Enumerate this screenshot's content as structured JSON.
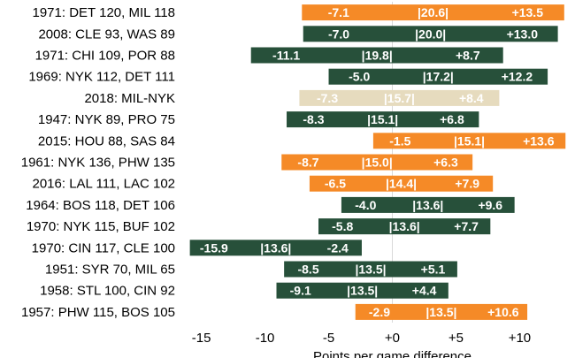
{
  "chart_data": {
    "type": "bar",
    "orientation": "horizontal-range",
    "xlabel": "Points per game difference",
    "xlim": [
      -16.5,
      14
    ],
    "xticks": [
      -15,
      -10,
      -5,
      0,
      5,
      10
    ],
    "xtick_labels": [
      "-15",
      "-10",
      "-5",
      "+0",
      "+5",
      "+10"
    ],
    "colors": {
      "orange": "#f58a27",
      "green": "#27503a",
      "tan": "#e6dbbe"
    },
    "rows": [
      {
        "label": "1971: DET 120, MIL 118",
        "start": -7.1,
        "end": 13.5,
        "range": "|20.6|",
        "start_label": "-7.1",
        "end_label": "+13.5",
        "color": "orange"
      },
      {
        "label": "2008: CLE 93, WAS 89",
        "start": -7.0,
        "end": 13.0,
        "range": "|20.0|",
        "start_label": "-7.0",
        "end_label": "+13.0",
        "color": "green"
      },
      {
        "label": "1971: CHI 109, POR 88",
        "start": -11.1,
        "end": 8.7,
        "range": "|19.8|",
        "start_label": "-11.1",
        "end_label": "+8.7",
        "color": "green"
      },
      {
        "label": "1969: NYK 112, DET 111",
        "start": -5.0,
        "end": 12.2,
        "range": "|17.2|",
        "start_label": "-5.0",
        "end_label": "+12.2",
        "color": "green"
      },
      {
        "label": "2018: MIL-NYK",
        "start": -7.3,
        "end": 8.4,
        "range": "|15.7|",
        "start_label": "-7.3",
        "end_label": "+8.4",
        "color": "tan"
      },
      {
        "label": "1947: NYK 89, PRO 75",
        "start": -8.3,
        "end": 6.8,
        "range": "|15.1|",
        "start_label": "-8.3",
        "end_label": "+6.8",
        "color": "green"
      },
      {
        "label": "2015: HOU 88, SAS 84",
        "start": -1.5,
        "end": 13.6,
        "range": "|15.1|",
        "start_label": "-1.5",
        "end_label": "+13.6",
        "color": "orange"
      },
      {
        "label": "1961: NYK 136, PHW 135",
        "start": -8.7,
        "end": 6.3,
        "range": "|15.0|",
        "start_label": "-8.7",
        "end_label": "+6.3",
        "color": "orange"
      },
      {
        "label": "2016: LAL 111, LAC 102",
        "start": -6.5,
        "end": 7.9,
        "range": "|14.4|",
        "start_label": "-6.5",
        "end_label": "+7.9",
        "color": "orange"
      },
      {
        "label": "1964: BOS 118, DET 106",
        "start": -4.0,
        "end": 9.6,
        "range": "|13.6|",
        "start_label": "-4.0",
        "end_label": "+9.6",
        "color": "green"
      },
      {
        "label": "1970: NYK 115, BUF 102",
        "start": -5.8,
        "end": 7.7,
        "range": "|13.6|",
        "start_label": "-5.8",
        "end_label": "+7.7",
        "color": "green"
      },
      {
        "label": "1970: CIN 117, CLE 100",
        "start": -15.9,
        "end": -2.4,
        "range": "|13.6|",
        "start_label": "-15.9",
        "end_label": "-2.4",
        "color": "green"
      },
      {
        "label": "1951: SYR 70, MIL 65",
        "start": -8.5,
        "end": 5.1,
        "range": "|13.5|",
        "start_label": "-8.5",
        "end_label": "+5.1",
        "color": "green"
      },
      {
        "label": "1958: STL 100, CIN 92",
        "start": -9.1,
        "end": 4.4,
        "range": "|13.5|",
        "start_label": "-9.1",
        "end_label": "+4.4",
        "color": "green"
      },
      {
        "label": "1957: PHW 115, BOS 105",
        "start": -2.9,
        "end": 10.6,
        "range": "|13.5|",
        "start_label": "-2.9",
        "end_label": "+10.6",
        "color": "orange"
      }
    ]
  }
}
